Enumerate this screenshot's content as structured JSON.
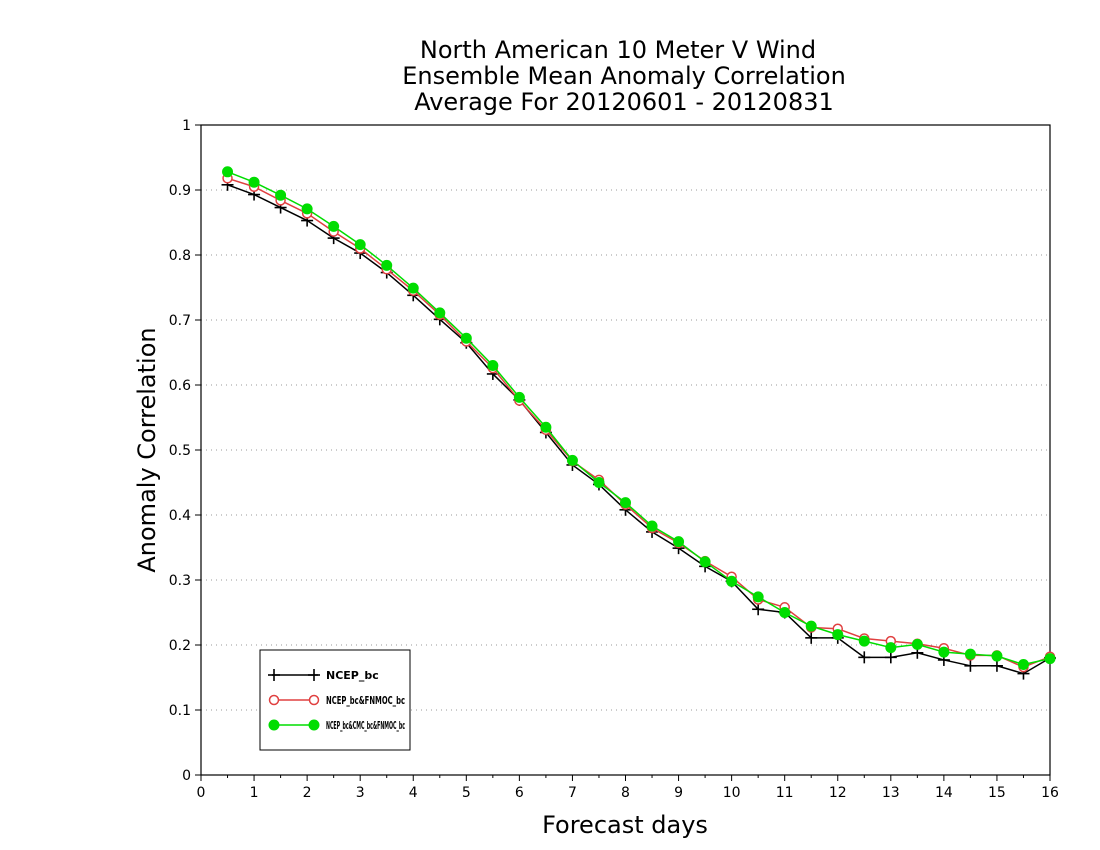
{
  "chart_data": {
    "type": "line",
    "title": [
      "North American 10 Meter V Wind",
      "Ensemble Mean Anomaly Correlation",
      "Average For 20120601 - 20120831"
    ],
    "xlabel": "Forecast days",
    "ylabel": "Anomaly Correlation",
    "xlim": [
      0,
      16
    ],
    "ylim": [
      0,
      1
    ],
    "xticks": [
      0,
      1,
      2,
      3,
      4,
      5,
      6,
      7,
      8,
      9,
      10,
      11,
      12,
      13,
      14,
      15,
      16
    ],
    "yticks": [
      0,
      0.1,
      0.2,
      0.3,
      0.4,
      0.5,
      0.6,
      0.7,
      0.8,
      0.9,
      1
    ],
    "grid": "horizontal dotted",
    "legend_position": "bottom-left",
    "x": [
      0.5,
      1,
      1.5,
      2,
      2.5,
      3,
      3.5,
      4,
      4.5,
      5,
      5.5,
      6,
      6.5,
      7,
      7.5,
      8,
      8.5,
      9,
      9.5,
      10,
      10.5,
      11,
      11.5,
      12,
      12.5,
      13,
      13.5,
      14,
      14.5,
      15,
      15.5,
      16
    ],
    "series": [
      {
        "name": "NCEP_bc",
        "color": "#000000",
        "marker": "plus",
        "values": [
          0.908,
          0.893,
          0.873,
          0.853,
          0.826,
          0.803,
          0.773,
          0.738,
          0.701,
          0.665,
          0.617,
          0.577,
          0.527,
          0.477,
          0.447,
          0.408,
          0.374,
          0.349,
          0.321,
          0.298,
          0.255,
          0.25,
          0.211,
          0.211,
          0.181,
          0.181,
          0.188,
          0.177,
          0.168,
          0.168,
          0.156,
          0.18
        ]
      },
      {
        "name": "NCEP_bc&FNMOC_bc",
        "color": "#e04040",
        "marker": "open-circle",
        "values": [
          0.918,
          0.905,
          0.884,
          0.864,
          0.836,
          0.81,
          0.778,
          0.745,
          0.708,
          0.667,
          0.626,
          0.576,
          0.531,
          0.483,
          0.454,
          0.416,
          0.38,
          0.357,
          0.329,
          0.305,
          0.27,
          0.258,
          0.227,
          0.225,
          0.21,
          0.206,
          0.202,
          0.195,
          0.184,
          0.184,
          0.166,
          0.182
        ]
      },
      {
        "name": "NCEP_bc&CMC_bc&FNMOC_bc",
        "color": "#00dd00",
        "marker": "filled-circle",
        "values": [
          0.928,
          0.912,
          0.892,
          0.871,
          0.844,
          0.816,
          0.784,
          0.749,
          0.711,
          0.672,
          0.63,
          0.581,
          0.535,
          0.484,
          0.45,
          0.419,
          0.383,
          0.359,
          0.328,
          0.298,
          0.274,
          0.25,
          0.229,
          0.216,
          0.206,
          0.196,
          0.201,
          0.189,
          0.186,
          0.183,
          0.17,
          0.179
        ]
      }
    ]
  }
}
